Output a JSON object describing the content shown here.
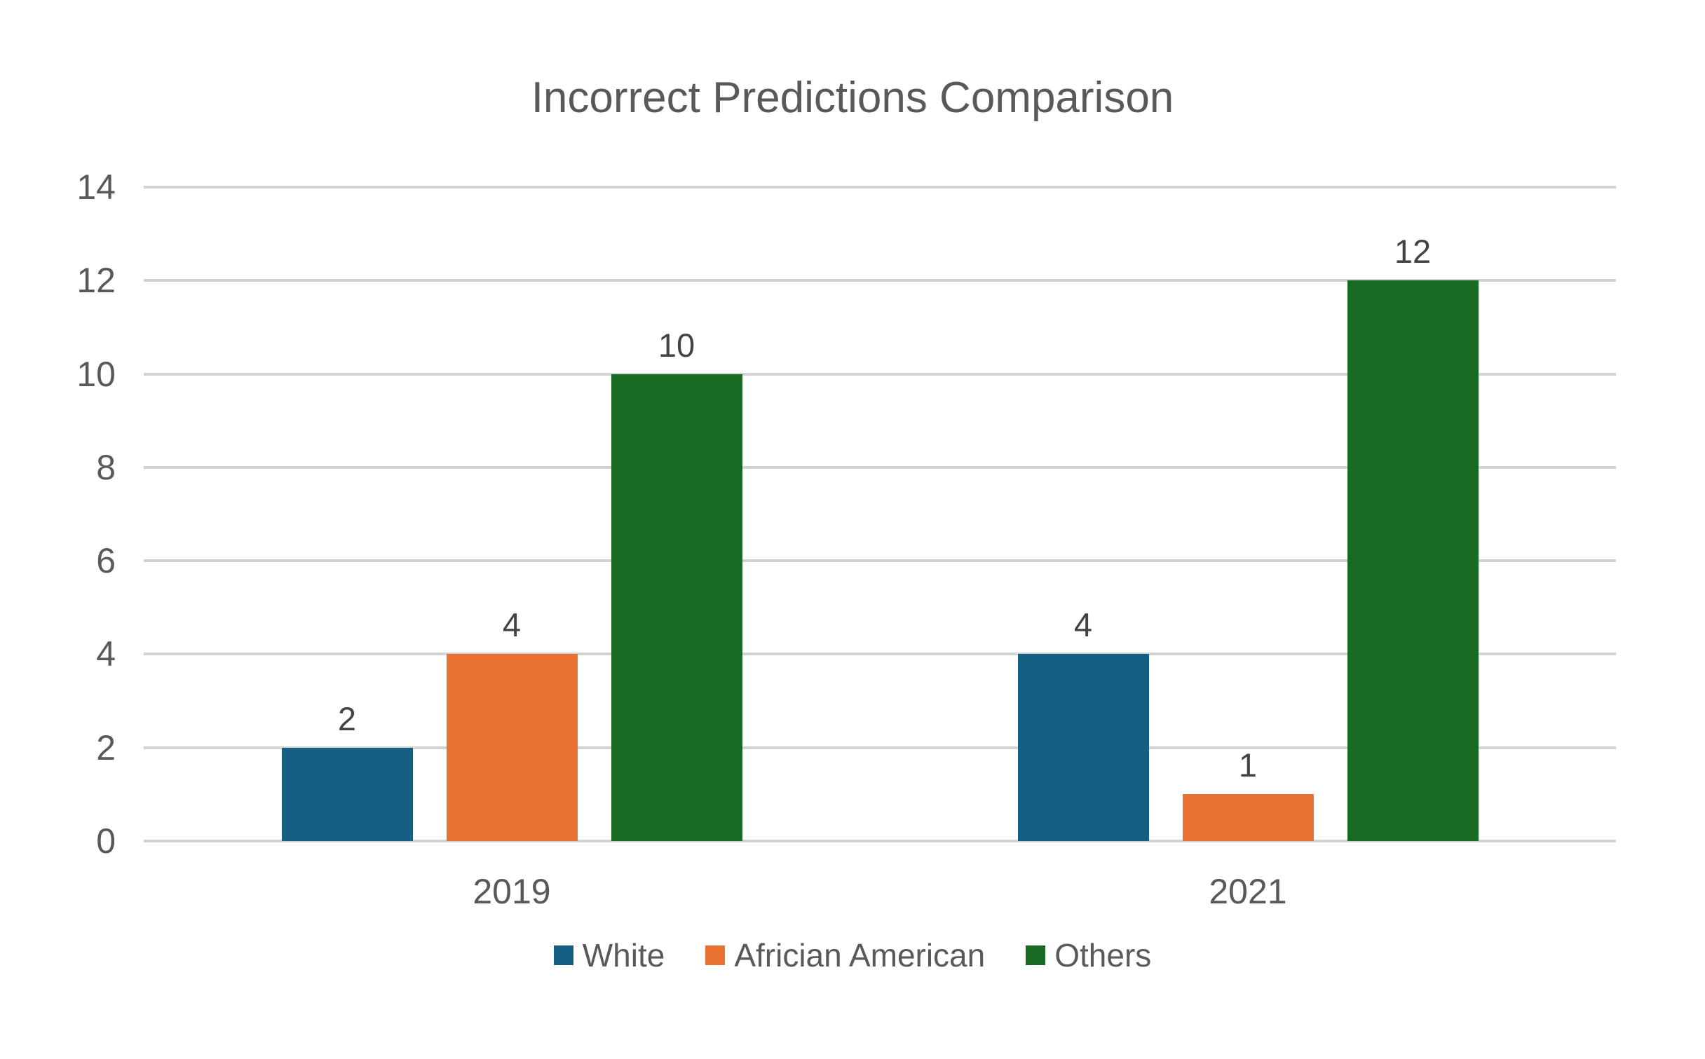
{
  "chart_data": {
    "type": "bar",
    "title": "Incorrect Predictions Comparison",
    "categories": [
      "2019",
      "2021"
    ],
    "series": [
      {
        "name": "White",
        "color": "#156082",
        "values": [
          2,
          4
        ]
      },
      {
        "name": "Africian American",
        "color": "#E97132",
        "values": [
          4,
          1
        ]
      },
      {
        "name": "Others",
        "color": "#196B24",
        "values": [
          10,
          12
        ]
      }
    ],
    "ylim": [
      0,
      14
    ],
    "ystep": 2,
    "yticks": [
      0,
      2,
      4,
      6,
      8,
      10,
      12,
      14
    ],
    "xlabel": "",
    "ylabel": "",
    "grid": "horizontal",
    "gridline_color": "#d2d2d2",
    "legend_position": "bottom",
    "data_labels": true,
    "data_labels_2019": [
      "2",
      "4",
      "10"
    ],
    "data_labels_2021": [
      "4",
      "1",
      "12"
    ],
    "text_color": "#595959"
  }
}
